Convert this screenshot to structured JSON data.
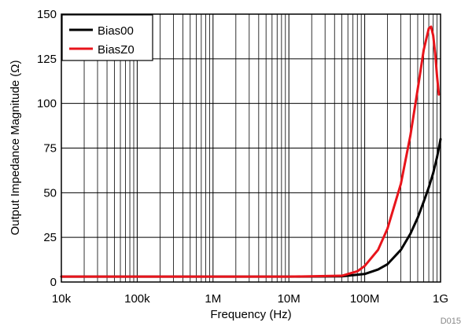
{
  "chart_data": {
    "type": "line",
    "xlabel": "Frequency (Hz)",
    "ylabel": "Output Impedance Magnitude (Ω)",
    "figure_id": "D015",
    "x_scale": "log",
    "xlim": [
      10000,
      1000000000
    ],
    "ylim": [
      0,
      150
    ],
    "grid": true,
    "legend_position": "top-left",
    "x_ticks": [
      {
        "value": 10000,
        "label": "10k"
      },
      {
        "value": 100000,
        "label": "100k"
      },
      {
        "value": 1000000,
        "label": "1M"
      },
      {
        "value": 10000000,
        "label": "10M"
      },
      {
        "value": 100000000,
        "label": "100M"
      },
      {
        "value": 1000000000,
        "label": "1G"
      }
    ],
    "y_ticks": [
      {
        "value": 0,
        "label": "0"
      },
      {
        "value": 25,
        "label": "25"
      },
      {
        "value": 50,
        "label": "50"
      },
      {
        "value": 75,
        "label": "75"
      },
      {
        "value": 100,
        "label": "100"
      },
      {
        "value": 125,
        "label": "125"
      },
      {
        "value": 150,
        "label": "150"
      }
    ],
    "series": [
      {
        "name": "Bias00",
        "color": "#000000",
        "points": [
          [
            10000,
            3
          ],
          [
            1000000,
            3
          ],
          [
            10000000,
            3
          ],
          [
            50000000,
            3.2
          ],
          [
            100000000,
            4.5
          ],
          [
            150000000,
            7
          ],
          [
            200000000,
            10
          ],
          [
            300000000,
            18
          ],
          [
            400000000,
            27
          ],
          [
            500000000,
            36
          ],
          [
            600000000,
            45
          ],
          [
            700000000,
            53
          ],
          [
            800000000,
            61
          ],
          [
            900000000,
            70
          ],
          [
            1000000000,
            80
          ]
        ]
      },
      {
        "name": "BiasZ0",
        "color": "#e8141b",
        "points": [
          [
            10000,
            3
          ],
          [
            1000000,
            3
          ],
          [
            10000000,
            3
          ],
          [
            50000000,
            3.5
          ],
          [
            80000000,
            6
          ],
          [
            100000000,
            9
          ],
          [
            150000000,
            18
          ],
          [
            200000000,
            30
          ],
          [
            300000000,
            55
          ],
          [
            400000000,
            82
          ],
          [
            500000000,
            108
          ],
          [
            600000000,
            130
          ],
          [
            700000000,
            142
          ],
          [
            750000000,
            143
          ],
          [
            800000000,
            138
          ],
          [
            850000000,
            128
          ],
          [
            900000000,
            115
          ],
          [
            950000000,
            105
          ]
        ]
      }
    ]
  }
}
